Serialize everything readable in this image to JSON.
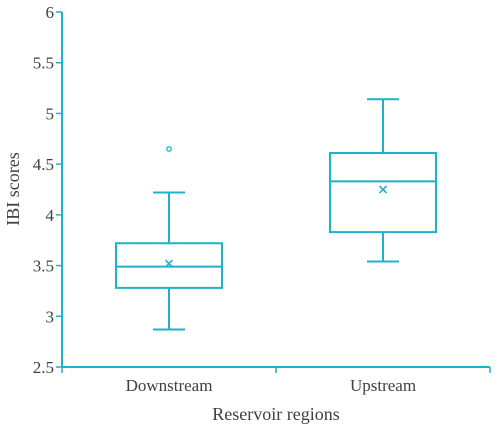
{
  "chart_data": {
    "type": "box",
    "xlabel": "Reservoir regions",
    "ylabel": "IBI scores",
    "ylim": [
      2.5,
      6
    ],
    "yticks": [
      "2.5",
      "3",
      "3.5",
      "4",
      "4.5",
      "5",
      "5.5",
      "6"
    ],
    "grid": false,
    "categories": [
      "Downstream",
      "Upstream"
    ],
    "boxes": [
      {
        "category": "Downstream",
        "whisker_low": 2.87,
        "q1": 3.28,
        "median": 3.49,
        "q3": 3.72,
        "whisker_high": 4.22,
        "mean": 3.52,
        "outliers": [
          4.65
        ]
      },
      {
        "category": "Upstream",
        "whisker_low": 3.54,
        "q1": 3.83,
        "median": 4.33,
        "q3": 4.61,
        "whisker_high": 5.14,
        "mean": 4.25,
        "outliers": []
      }
    ]
  },
  "colors": {
    "box": "#1fb1c9",
    "axis": "#1fb1c9",
    "text": "#404040"
  }
}
